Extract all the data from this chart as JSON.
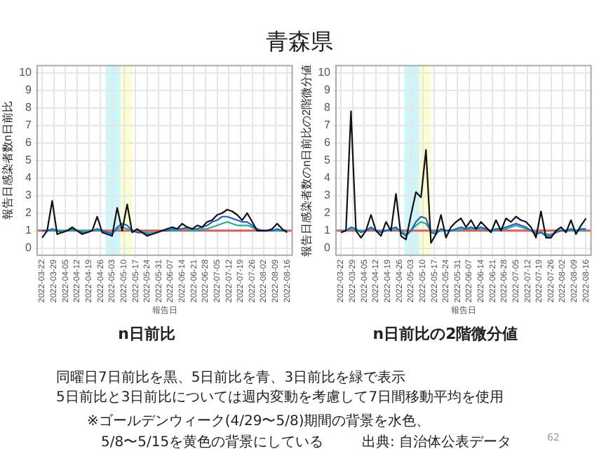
{
  "chart_data": [
    {
      "type": "line",
      "title": "n日前比",
      "xlabel": "報告日",
      "ylabel": "報告日感染者数n日前比",
      "x": [
        "2022-03-22",
        "2022-03-25",
        "2022-03-28",
        "2022-03-31",
        "2022-04-03",
        "2022-04-06",
        "2022-04-09",
        "2022-04-12",
        "2022-04-15",
        "2022-04-18",
        "2022-04-21",
        "2022-04-24",
        "2022-04-27",
        "2022-04-30",
        "2022-05-03",
        "2022-05-06",
        "2022-05-09",
        "2022-05-12",
        "2022-05-15",
        "2022-05-18",
        "2022-05-21",
        "2022-05-24",
        "2022-05-27",
        "2022-05-30",
        "2022-06-02",
        "2022-06-05",
        "2022-06-08",
        "2022-06-11",
        "2022-06-14",
        "2022-06-17",
        "2022-06-20",
        "2022-06-23",
        "2022-06-26",
        "2022-06-29",
        "2022-07-02",
        "2022-07-05",
        "2022-07-08",
        "2022-07-11",
        "2022-07-14",
        "2022-07-17",
        "2022-07-20",
        "2022-07-23",
        "2022-07-26",
        "2022-07-29",
        "2022-08-01",
        "2022-08-04",
        "2022-08-07",
        "2022-08-10",
        "2022-08-13",
        "2022-08-16"
      ],
      "series": [
        {
          "color": "#111111",
          "values": [
            0.6,
            1.0,
            2.7,
            0.8,
            0.9,
            1.0,
            1.2,
            1.0,
            0.8,
            0.9,
            1.0,
            1.8,
            0.9,
            0.8,
            0.7,
            2.3,
            1.0,
            2.5,
            0.9,
            1.1,
            0.9,
            0.7,
            0.8,
            0.9,
            1.0,
            1.1,
            1.2,
            1.1,
            1.4,
            1.2,
            1.1,
            1.3,
            1.2,
            1.5,
            1.6,
            1.9,
            2.0,
            2.2,
            2.1,
            1.9,
            1.6,
            2.0,
            1.5,
            1.0,
            1.0,
            1.0,
            1.1,
            1.4,
            1.1,
            0.9
          ]
        },
        {
          "color": "#1f5fd0",
          "values": [
            1.0,
            1.0,
            1.1,
            1.0,
            0.9,
            1.0,
            1.1,
            1.0,
            0.9,
            0.9,
            1.0,
            1.1,
            1.0,
            0.9,
            0.8,
            1.2,
            1.4,
            1.3,
            1.0,
            0.9,
            0.9,
            0.8,
            0.8,
            0.9,
            1.0,
            1.0,
            1.1,
            1.1,
            1.1,
            1.2,
            1.1,
            1.1,
            1.2,
            1.3,
            1.5,
            1.6,
            1.8,
            1.8,
            1.7,
            1.6,
            1.5,
            1.5,
            1.3,
            1.1,
            1.0,
            1.0,
            1.0,
            1.1,
            1.0,
            1.0
          ]
        },
        {
          "color": "#20b090",
          "values": [
            1.0,
            1.0,
            1.0,
            1.0,
            1.0,
            1.0,
            1.0,
            1.0,
            1.0,
            1.0,
            1.0,
            1.0,
            1.0,
            0.9,
            0.9,
            1.1,
            1.2,
            1.1,
            1.0,
            0.9,
            0.9,
            0.9,
            0.9,
            0.9,
            1.0,
            1.0,
            1.0,
            1.0,
            1.1,
            1.1,
            1.0,
            1.0,
            1.1,
            1.1,
            1.2,
            1.3,
            1.4,
            1.5,
            1.4,
            1.3,
            1.3,
            1.3,
            1.2,
            1.0,
            1.0,
            1.0,
            1.0,
            1.0,
            1.0,
            1.0
          ]
        }
      ],
      "xlim": [
        "2022-03-19",
        "2022-08-19"
      ],
      "xticks": [
        "2022-03-22",
        "2022-03-29",
        "2022-04-05",
        "2022-04-12",
        "2022-04-19",
        "2022-04-26",
        "2022-05-03",
        "2022-05-10",
        "2022-05-17",
        "2022-05-24",
        "2022-05-31",
        "2022-06-07",
        "2022-06-14",
        "2022-06-21",
        "2022-06-28",
        "2022-07-05",
        "2022-07-12",
        "2022-07-19",
        "2022-07-26",
        "2022-08-02",
        "2022-08-09",
        "2022-08-16"
      ],
      "ylim": [
        -0.4,
        10.4
      ],
      "yticks": [
        0,
        1,
        2,
        3,
        4,
        5,
        6,
        7,
        8,
        9,
        10
      ],
      "ref_lines": [
        {
          "axis": "y",
          "value": 1,
          "color": "#e05a5a"
        }
      ],
      "bands": [
        {
          "axis": "x",
          "from": "2022-04-29",
          "to": "2022-05-08",
          "color": "#ccf6fa"
        },
        {
          "axis": "x",
          "from": "2022-05-08",
          "to": "2022-05-15",
          "color": "#fdfdd2"
        }
      ],
      "grid": true,
      "marker": "none",
      "line_style": "solid"
    },
    {
      "type": "line",
      "title": "n日前比の2階微分値",
      "xlabel": "報告日",
      "ylabel": "報告日感染者数のn日前比の2階微分値",
      "x": [
        "2022-03-22",
        "2022-03-25",
        "2022-03-28",
        "2022-03-31",
        "2022-04-03",
        "2022-04-06",
        "2022-04-09",
        "2022-04-12",
        "2022-04-15",
        "2022-04-18",
        "2022-04-21",
        "2022-04-24",
        "2022-04-27",
        "2022-04-30",
        "2022-05-03",
        "2022-05-06",
        "2022-05-09",
        "2022-05-12",
        "2022-05-15",
        "2022-05-18",
        "2022-05-21",
        "2022-05-24",
        "2022-05-27",
        "2022-05-30",
        "2022-06-02",
        "2022-06-05",
        "2022-06-08",
        "2022-06-11",
        "2022-06-14",
        "2022-06-17",
        "2022-06-20",
        "2022-06-23",
        "2022-06-26",
        "2022-06-29",
        "2022-07-02",
        "2022-07-05",
        "2022-07-08",
        "2022-07-11",
        "2022-07-14",
        "2022-07-17",
        "2022-07-20",
        "2022-07-23",
        "2022-07-26",
        "2022-07-29",
        "2022-08-01",
        "2022-08-04",
        "2022-08-07",
        "2022-08-10",
        "2022-08-13",
        "2022-08-16"
      ],
      "series": [
        {
          "color": "#111111",
          "values": [
            0.9,
            1.0,
            7.8,
            1.0,
            0.6,
            1.0,
            1.9,
            1.0,
            0.7,
            1.5,
            1.0,
            3.1,
            0.7,
            0.5,
            1.9,
            3.2,
            2.9,
            5.6,
            0.3,
            0.8,
            1.9,
            0.6,
            1.2,
            1.5,
            1.7,
            1.2,
            1.6,
            1.1,
            1.5,
            1.2,
            0.9,
            1.6,
            1.0,
            1.7,
            1.5,
            1.8,
            1.6,
            1.5,
            1.2,
            0.6,
            2.1,
            0.6,
            0.6,
            1.0,
            1.2,
            0.9,
            1.6,
            0.8,
            1.3,
            1.7
          ]
        },
        {
          "color": "#1f5fd0",
          "values": [
            0.9,
            1.0,
            1.2,
            1.1,
            0.9,
            1.0,
            1.2,
            1.0,
            0.9,
            1.0,
            1.1,
            1.2,
            0.9,
            0.7,
            1.0,
            1.5,
            1.8,
            1.7,
            0.9,
            0.8,
            1.1,
            1.0,
            1.0,
            1.1,
            1.2,
            1.1,
            1.2,
            1.1,
            1.2,
            1.1,
            1.0,
            1.1,
            1.1,
            1.2,
            1.3,
            1.4,
            1.3,
            1.2,
            1.0,
            0.8,
            0.9,
            0.7,
            0.7,
            0.9,
            1.0,
            1.0,
            1.1,
            1.0,
            1.1,
            1.1
          ]
        },
        {
          "color": "#20b090",
          "values": [
            1.0,
            1.0,
            1.1,
            1.0,
            1.0,
            1.0,
            1.1,
            1.0,
            1.0,
            1.0,
            1.0,
            1.1,
            1.0,
            0.8,
            1.0,
            1.3,
            1.5,
            1.4,
            1.0,
            0.9,
            1.0,
            1.0,
            1.0,
            1.0,
            1.1,
            1.1,
            1.1,
            1.1,
            1.1,
            1.1,
            1.0,
            1.0,
            1.1,
            1.1,
            1.2,
            1.3,
            1.2,
            1.1,
            1.0,
            0.9,
            0.9,
            0.8,
            0.8,
            0.9,
            1.0,
            1.0,
            1.0,
            1.0,
            1.0,
            1.0
          ]
        }
      ],
      "xlim": [
        "2022-03-19",
        "2022-08-19"
      ],
      "xticks": [
        "2022-03-22",
        "2022-03-29",
        "2022-04-05",
        "2022-04-12",
        "2022-04-19",
        "2022-04-26",
        "2022-05-03",
        "2022-05-10",
        "2022-05-17",
        "2022-05-24",
        "2022-05-31",
        "2022-06-07",
        "2022-06-14",
        "2022-06-21",
        "2022-06-28",
        "2022-07-05",
        "2022-07-12",
        "2022-07-19",
        "2022-07-26",
        "2022-08-02",
        "2022-08-09",
        "2022-08-16"
      ],
      "ylim": [
        -0.4,
        10.4
      ],
      "yticks": [
        0,
        1,
        2,
        3,
        4,
        5,
        6,
        7,
        8,
        9,
        10
      ],
      "ref_lines": [
        {
          "axis": "y",
          "value": 1,
          "color": "#e05a5a"
        }
      ],
      "bands": [
        {
          "axis": "x",
          "from": "2022-04-29",
          "to": "2022-05-08",
          "color": "#ccf6fa"
        },
        {
          "axis": "x",
          "from": "2022-05-08",
          "to": "2022-05-15",
          "color": "#fdfdd2"
        }
      ],
      "grid": true,
      "marker": "none",
      "line_style": "solid"
    },
    {
      "type": "other",
      "title": "青森県",
      "annotations": [
        "同曜日7日前比を黒、5日前比を青、3日前比を緑で表示",
        "5日前比と3日前比については週内変動を考慮して7日間移動平均を使用",
        "※ゴールデンウィーク(4/29〜5/8)期間の背景を水色、",
        "5/8〜5/15を黄色の背景にしている",
        "出典: 自治体公表データ",
        "62"
      ]
    }
  ]
}
